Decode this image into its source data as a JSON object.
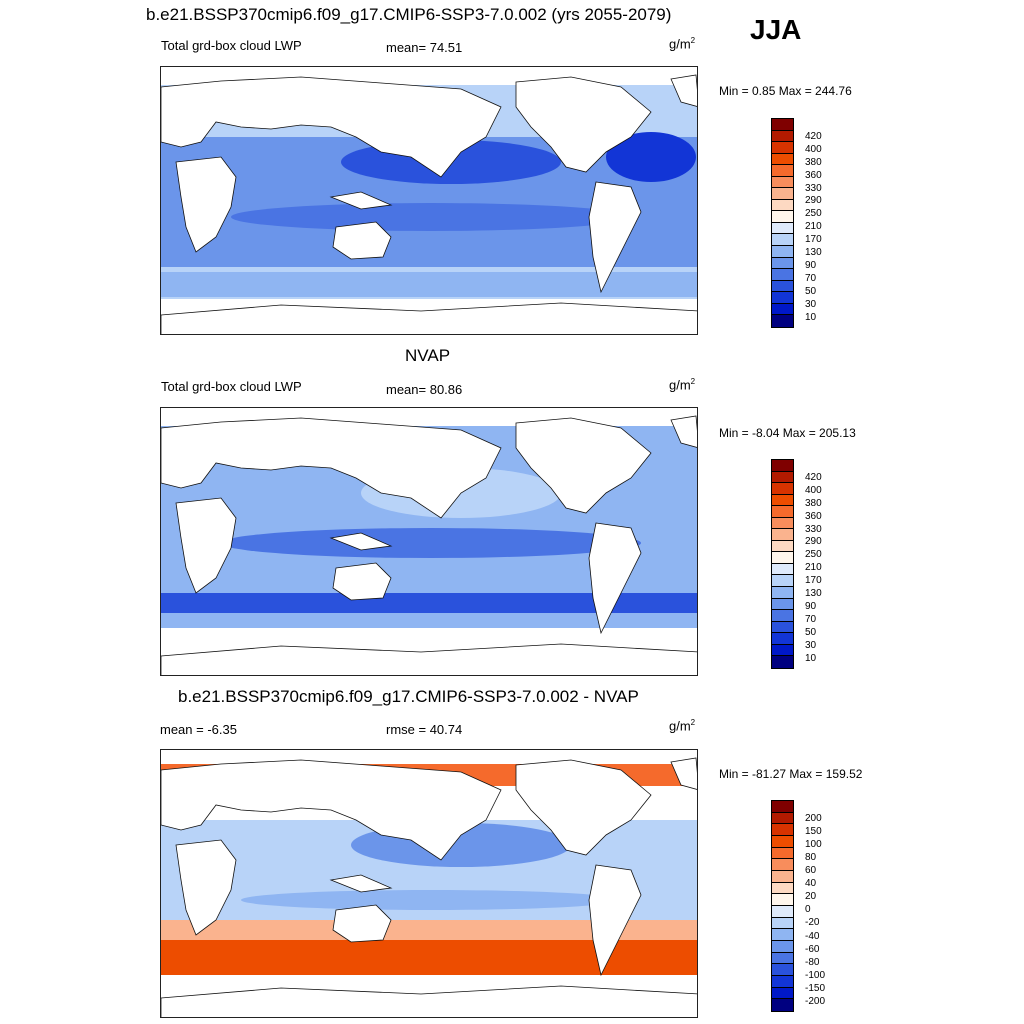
{
  "season": "JJA",
  "panels": [
    {
      "id": "model",
      "title": "b.e21.BSSP370cmip6.f09_g17.CMIP6-SSP3-7.0.002 (yrs 2055-2079)",
      "left_label": "Total grd-box cloud LWP",
      "stat_label": "mean=  74.51",
      "unit": "g/m",
      "unit_sup": "2",
      "minmax": "Min =   0.85 Max = 244.76",
      "colorbar": {
        "colors": [
          "#7f0000",
          "#b21a00",
          "#d73300",
          "#ed4d00",
          "#f56a2c",
          "#f88d5c",
          "#fab38e",
          "#fdd9c2",
          "#fff6ec",
          "#dfeafb",
          "#b8d3f8",
          "#8fb5f2",
          "#6b95ea",
          "#4a74e3",
          "#2a52dc",
          "#1235d6",
          "#0018c8",
          "#000080"
        ],
        "labels": [
          "420",
          "400",
          "380",
          "360",
          "330",
          "290",
          "250",
          "210",
          "170",
          "130",
          "90",
          "70",
          "50",
          "30",
          "10"
        ]
      }
    },
    {
      "id": "obs",
      "title": "NVAP",
      "left_label": "Total grd-box cloud LWP",
      "stat_label": "mean=  80.86",
      "unit": "g/m",
      "unit_sup": "2",
      "minmax": "Min =  -8.04 Max = 205.13",
      "colorbar": {
        "colors": [
          "#7f0000",
          "#b21a00",
          "#d73300",
          "#ed4d00",
          "#f56a2c",
          "#f88d5c",
          "#fab38e",
          "#fdd9c2",
          "#fff6ec",
          "#dfeafb",
          "#b8d3f8",
          "#8fb5f2",
          "#6b95ea",
          "#4a74e3",
          "#2a52dc",
          "#1235d6",
          "#0018c8",
          "#000080"
        ],
        "labels": [
          "420",
          "400",
          "380",
          "360",
          "330",
          "290",
          "250",
          "210",
          "170",
          "130",
          "90",
          "70",
          "50",
          "30",
          "10"
        ]
      }
    },
    {
      "id": "diff",
      "title": "b.e21.BSSP370cmip6.f09_g17.CMIP6-SSP3-7.0.002 - NVAP",
      "left_label": "mean =  -6.35",
      "stat_label": "rmse =  40.74",
      "unit": "g/m",
      "unit_sup": "2",
      "minmax": "Min = -81.27 Max = 159.52",
      "colorbar": {
        "colors": [
          "#7f0000",
          "#b21a00",
          "#d73300",
          "#ed4d00",
          "#f56a2c",
          "#f88d5c",
          "#fab38e",
          "#fdd9c2",
          "#fff6ec",
          "#dfeafb",
          "#b8d3f8",
          "#8fb5f2",
          "#6b95ea",
          "#4a74e3",
          "#2a52dc",
          "#1235d6",
          "#0018c8",
          "#000080"
        ],
        "labels": [
          "200",
          "150",
          "100",
          "80",
          "60",
          "40",
          "20",
          "0",
          "-20",
          "-40",
          "-60",
          "-80",
          "-100",
          "-150",
          "-200"
        ]
      }
    }
  ]
}
